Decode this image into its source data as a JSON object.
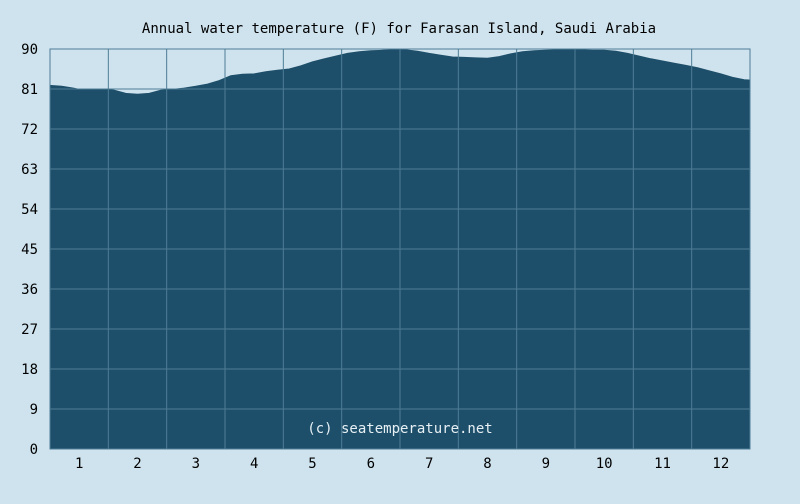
{
  "chart_data": {
    "type": "area",
    "title": "Annual water temperature (F) for Farasan Island, Saudi Arabia",
    "xlabel": "",
    "ylabel": "",
    "ylim": [
      0,
      90
    ],
    "yticks": [
      0,
      9,
      18,
      27,
      36,
      45,
      54,
      63,
      72,
      81,
      90
    ],
    "xlim": [
      0.5,
      12.5
    ],
    "xticks": [
      1,
      2,
      3,
      4,
      5,
      6,
      7,
      8,
      9,
      10,
      11,
      12
    ],
    "grid": true,
    "watermark": "(c) seatemperature.net",
    "colors": {
      "fill": "#1e4f6a",
      "grid": "#4d7c95",
      "background": "#cfe3ee"
    },
    "series": [
      {
        "x": [
          0.5,
          0.7,
          0.9,
          1.0,
          1.2,
          1.4,
          1.6,
          1.8,
          2.0,
          2.2,
          2.4,
          2.6,
          2.8,
          3.0,
          3.2,
          3.4,
          3.6,
          3.8,
          4.0,
          4.2,
          4.4,
          4.6,
          4.8,
          5.0,
          5.2,
          5.4,
          5.6,
          5.8,
          6.0,
          6.2,
          6.4,
          6.6,
          6.8,
          7.0,
          7.2,
          7.4,
          7.6,
          7.8,
          8.0,
          8.2,
          8.4,
          8.6,
          8.8,
          9.0,
          9.2,
          9.4,
          9.6,
          9.8,
          10.0,
          10.2,
          10.4,
          10.6,
          10.8,
          11.0,
          11.2,
          11.4,
          11.6,
          11.8,
          12.0,
          12.2,
          12.4,
          12.5
        ],
        "values": [
          81.8,
          81.6,
          81.2,
          80.9,
          80.9,
          81.0,
          80.7,
          80.0,
          79.8,
          80.0,
          80.7,
          80.9,
          81.2,
          81.6,
          82.1,
          82.9,
          84.0,
          84.3,
          84.4,
          84.9,
          85.2,
          85.5,
          86.2,
          87.1,
          87.8,
          88.4,
          89.0,
          89.4,
          89.6,
          89.7,
          89.8,
          89.8,
          89.5,
          89.0,
          88.6,
          88.2,
          88.1,
          88.0,
          87.9,
          88.3,
          88.9,
          89.4,
          89.6,
          89.7,
          89.8,
          89.9,
          89.8,
          89.7,
          89.7,
          89.5,
          89.0,
          88.4,
          87.8,
          87.3,
          86.8,
          86.3,
          85.8,
          85.1,
          84.4,
          83.6,
          83.1,
          83.0
        ]
      }
    ]
  }
}
